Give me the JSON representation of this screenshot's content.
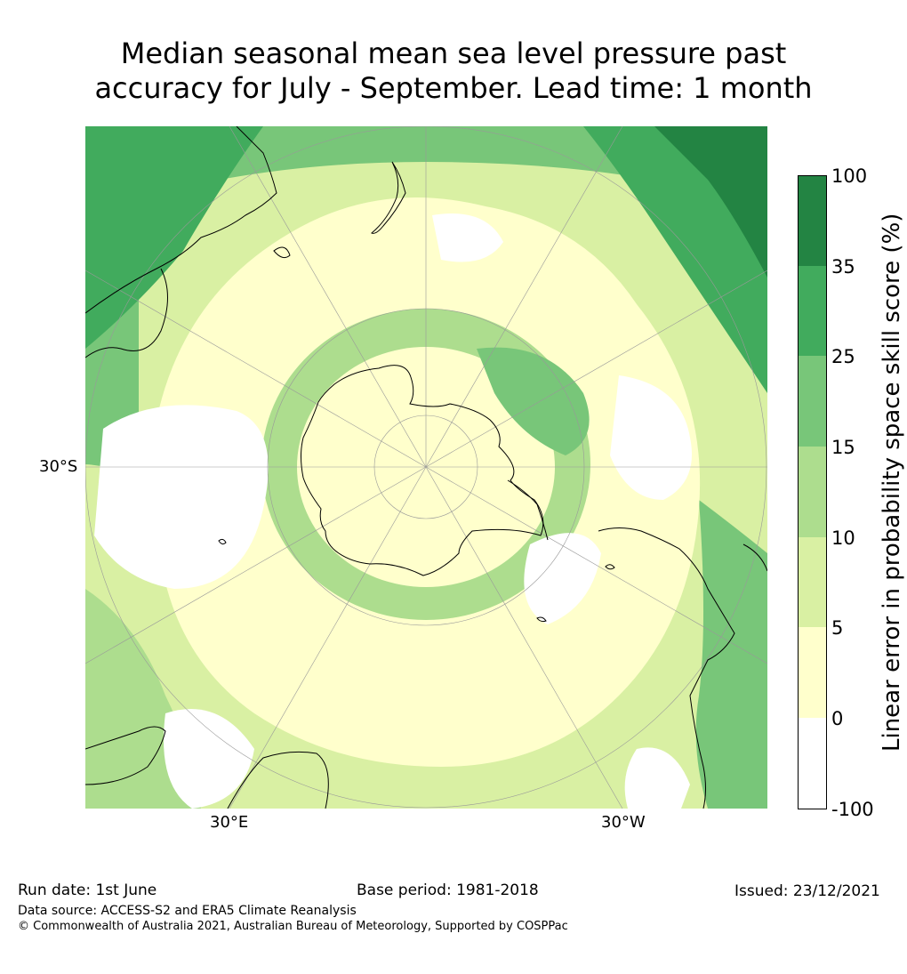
{
  "title": {
    "line1": "Median seasonal mean sea level pressure past",
    "line2": "accuracy for July - September. Lead time: 1 month"
  },
  "map": {
    "projection": "south polar stereographic",
    "lat_labels": [
      "30°S"
    ],
    "lon_labels": [
      "30°E",
      "30°W"
    ]
  },
  "colorbar": {
    "label": "Linear error in probability space skill score (%)",
    "ticks": [
      "100",
      "35",
      "25",
      "15",
      "10",
      "5",
      "0",
      "-100"
    ],
    "bins": [
      {
        "range": [
          -100,
          0
        ],
        "color": "#ffffff"
      },
      {
        "range": [
          0,
          5
        ],
        "color": "#ffffcc"
      },
      {
        "range": [
          5,
          10
        ],
        "color": "#d9f0a3"
      },
      {
        "range": [
          10,
          15
        ],
        "color": "#addd8e"
      },
      {
        "range": [
          15,
          25
        ],
        "color": "#78c679"
      },
      {
        "range": [
          25,
          35
        ],
        "color": "#41ab5d"
      },
      {
        "range": [
          35,
          100
        ],
        "color": "#238443"
      }
    ]
  },
  "footer": {
    "run_date": "Run date: 1st June",
    "base_period": "Base period: 1981-2018",
    "issued": "Issued: 23/12/2021",
    "data_source": "Data source: ACCESS-S2 and ERA5 Climate Reanalysis",
    "copyright": "© Commonwealth of Australia 2021, Australian Bureau of Meteorology, Supported by COSPPac"
  }
}
